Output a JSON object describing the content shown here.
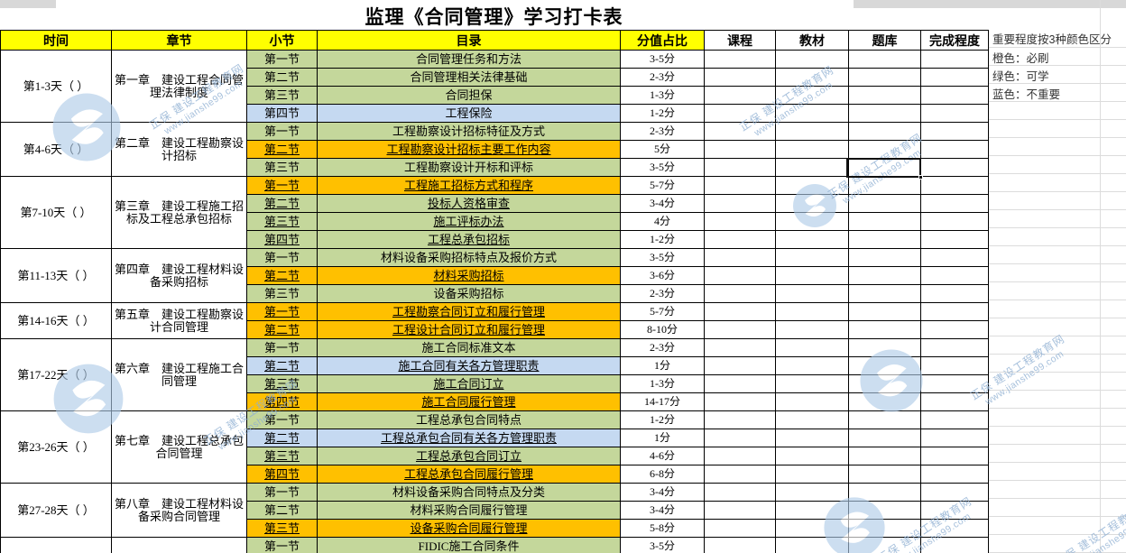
{
  "title": "监理《合同管理》学习打卡表",
  "header": {
    "time": "时间",
    "chapter": "章节",
    "section": "小节",
    "toc": "目录",
    "score": "分值占比",
    "course": "课程",
    "material": "教材",
    "qbank": "题库",
    "completion": "完成程度"
  },
  "legend": {
    "title": "重要程度按3种颜色区分",
    "items": [
      {
        "label": "橙色：必刷",
        "color": "#ffc000"
      },
      {
        "label": "绿色：可学",
        "color": "#c4d79b"
      },
      {
        "label": "蓝色：不重要",
        "color": "#c5d9f1"
      }
    ]
  },
  "colors": {
    "orange": "#ffc000",
    "green": "#c4d79b",
    "blue": "#c5d9f1",
    "yellow": "#ffff00"
  },
  "watermark": {
    "brand": "正保 建设工程教育网",
    "url": "www.jianshe99.com"
  },
  "selection": {
    "column": "题库",
    "row_section": "第三节",
    "row_title": "工程勘察设计开标和评标",
    "value": ""
  },
  "groups": [
    {
      "time": "第1-3天（ ）",
      "chapter": "第一章　建设工程合同管理法律制度",
      "rows": [
        {
          "section": "第一节",
          "title": "合同管理任务和方法",
          "score": "3-5分",
          "color": "green",
          "u": false
        },
        {
          "section": "第二节",
          "title": "合同管理相关法律基础",
          "score": "2-3分",
          "color": "green",
          "u": false
        },
        {
          "section": "第三节",
          "title": "合同担保",
          "score": "1-3分",
          "color": "green",
          "u": false
        },
        {
          "section": "第四节",
          "title": "工程保险",
          "score": "1-2分",
          "color": "blue",
          "u": false
        }
      ]
    },
    {
      "time": "第4-6天（ ）",
      "chapter": "第二章　建设工程勘察设计招标",
      "rows": [
        {
          "section": "第一节",
          "title": "工程勘察设计招标特征及方式",
          "score": "2-3分",
          "color": "green",
          "u": false
        },
        {
          "section": "第二节",
          "title": "工程勘察设计招标主要工作内容",
          "score": "5分",
          "color": "orange",
          "u": true
        },
        {
          "section": "第三节",
          "title": "工程勘察设计开标和评标",
          "score": "3-5分",
          "color": "green",
          "u": false
        }
      ]
    },
    {
      "time": "第7-10天（ ）",
      "chapter": "第三章　建设工程施工招标及工程总承包招标",
      "rows": [
        {
          "section": "第一节",
          "title": "工程施工招标方式和程序",
          "score": "5-7分",
          "color": "orange",
          "u": true
        },
        {
          "section": "第二节",
          "title": "投标人资格审查",
          "score": "3-4分",
          "color": "green",
          "u": true
        },
        {
          "section": "第三节",
          "title": "施工评标办法",
          "score": "4分",
          "color": "green",
          "u": true
        },
        {
          "section": "第四节",
          "title": "工程总承包招标",
          "score": "1-2分",
          "color": "green",
          "u": true
        }
      ]
    },
    {
      "time": "第11-13天（ ）",
      "chapter": "第四章　建设工程材料设备采购招标",
      "rows": [
        {
          "section": "第一节",
          "title": "材料设备采购招标特点及报价方式",
          "score": "3-5分",
          "color": "green",
          "u": false
        },
        {
          "section": "第二节",
          "title": "材料采购招标",
          "score": "3-6分",
          "color": "orange",
          "u": true
        },
        {
          "section": "第三节",
          "title": "设备采购招标",
          "score": "2-3分",
          "color": "green",
          "u": false
        }
      ]
    },
    {
      "time": "第14-16天（ ）",
      "chapter": "第五章　建设工程勘察设计合同管理",
      "rows": [
        {
          "section": "第一节",
          "title": "工程勘察合同订立和履行管理",
          "score": "5-7分",
          "color": "orange",
          "u": true
        },
        {
          "section": "第二节",
          "title": "工程设计合同订立和履行管理",
          "score": "8-10分",
          "color": "orange",
          "u": true
        }
      ]
    },
    {
      "time": "第17-22天（ ）",
      "chapter": "第六章　建设工程施工合同管理",
      "rows": [
        {
          "section": "第一节",
          "title": "施工合同标准文本",
          "score": "2-3分",
          "color": "green",
          "u": false
        },
        {
          "section": "第二节",
          "title": "施工合同有关各方管理职责",
          "score": "1分",
          "color": "blue",
          "u": true
        },
        {
          "section": "第三节",
          "title": "施工合同订立",
          "score": "1-3分",
          "color": "green",
          "u": true
        },
        {
          "section": "第四节",
          "title": "施工合同履行管理",
          "score": "14-17分",
          "color": "orange",
          "u": true
        }
      ]
    },
    {
      "time": "第23-26天（ ）",
      "chapter": "第七章　建设工程总承包合同管理",
      "rows": [
        {
          "section": "第一节",
          "title": "工程总承包合同特点",
          "score": "1-2分",
          "color": "green",
          "u": false
        },
        {
          "section": "第二节",
          "title": "工程总承包合同有关各方管理职责",
          "score": "1分",
          "color": "blue",
          "u": true
        },
        {
          "section": "第三节",
          "title": "工程总承包合同订立",
          "score": "4-6分",
          "color": "green",
          "u": true
        },
        {
          "section": "第四节",
          "title": "工程总承包合同履行管理",
          "score": "6-8分",
          "color": "orange",
          "u": true
        }
      ]
    },
    {
      "time": "第27-28天（ ）",
      "chapter": "第八章　建设工程材料设备采购合同管理",
      "rows": [
        {
          "section": "第一节",
          "title": "材料设备采购合同特点及分类",
          "score": "3-4分",
          "color": "green",
          "u": false
        },
        {
          "section": "第二节",
          "title": "材料采购合同履行管理",
          "score": "3-4分",
          "color": "green",
          "u": false
        },
        {
          "section": "第三节",
          "title": "设备采购合同履行管理",
          "score": "5-8分",
          "color": "orange",
          "u": true
        }
      ]
    },
    {
      "time": "",
      "chapter": "",
      "rows": [
        {
          "section": "第一节",
          "title": "FIDIC施工合同条件",
          "score": "3-5分",
          "color": "green",
          "u": false
        }
      ]
    }
  ]
}
